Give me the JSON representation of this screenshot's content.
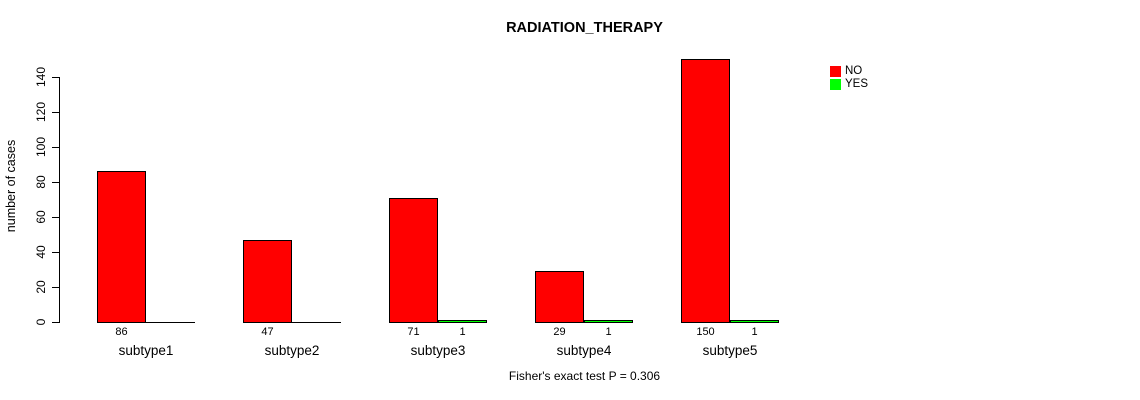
{
  "title": "RADIATION_THERAPY",
  "y_axis_label": "number of cases",
  "annotation": "Fisher's exact test P = 0.306",
  "legend": {
    "items": [
      {
        "label": "NO",
        "color": "#ff0000"
      },
      {
        "label": "YES",
        "color": "#00ff00"
      }
    ]
  },
  "chart_data": {
    "type": "bar",
    "title": "RADIATION_THERAPY",
    "xlabel": "",
    "ylabel": "number of cases",
    "categories": [
      "subtype1",
      "subtype2",
      "subtype3",
      "subtype4",
      "subtype5"
    ],
    "series": [
      {
        "name": "NO",
        "color": "#ff0000",
        "values": [
          86,
          47,
          71,
          29,
          150
        ]
      },
      {
        "name": "YES",
        "color": "#00ff00",
        "values": [
          0,
          0,
          1,
          1,
          1
        ]
      }
    ],
    "bar_value_labels": [
      [
        "86",
        ""
      ],
      [
        "47",
        ""
      ],
      [
        "71",
        "1"
      ],
      [
        "29",
        "1"
      ],
      [
        "150",
        "1"
      ]
    ],
    "yticks": [
      0,
      20,
      40,
      60,
      80,
      100,
      120,
      140
    ],
    "ylim": [
      0,
      150
    ],
    "grid": false,
    "legend_position": "top-right",
    "annotation": "Fisher's exact test P = 0.306"
  }
}
